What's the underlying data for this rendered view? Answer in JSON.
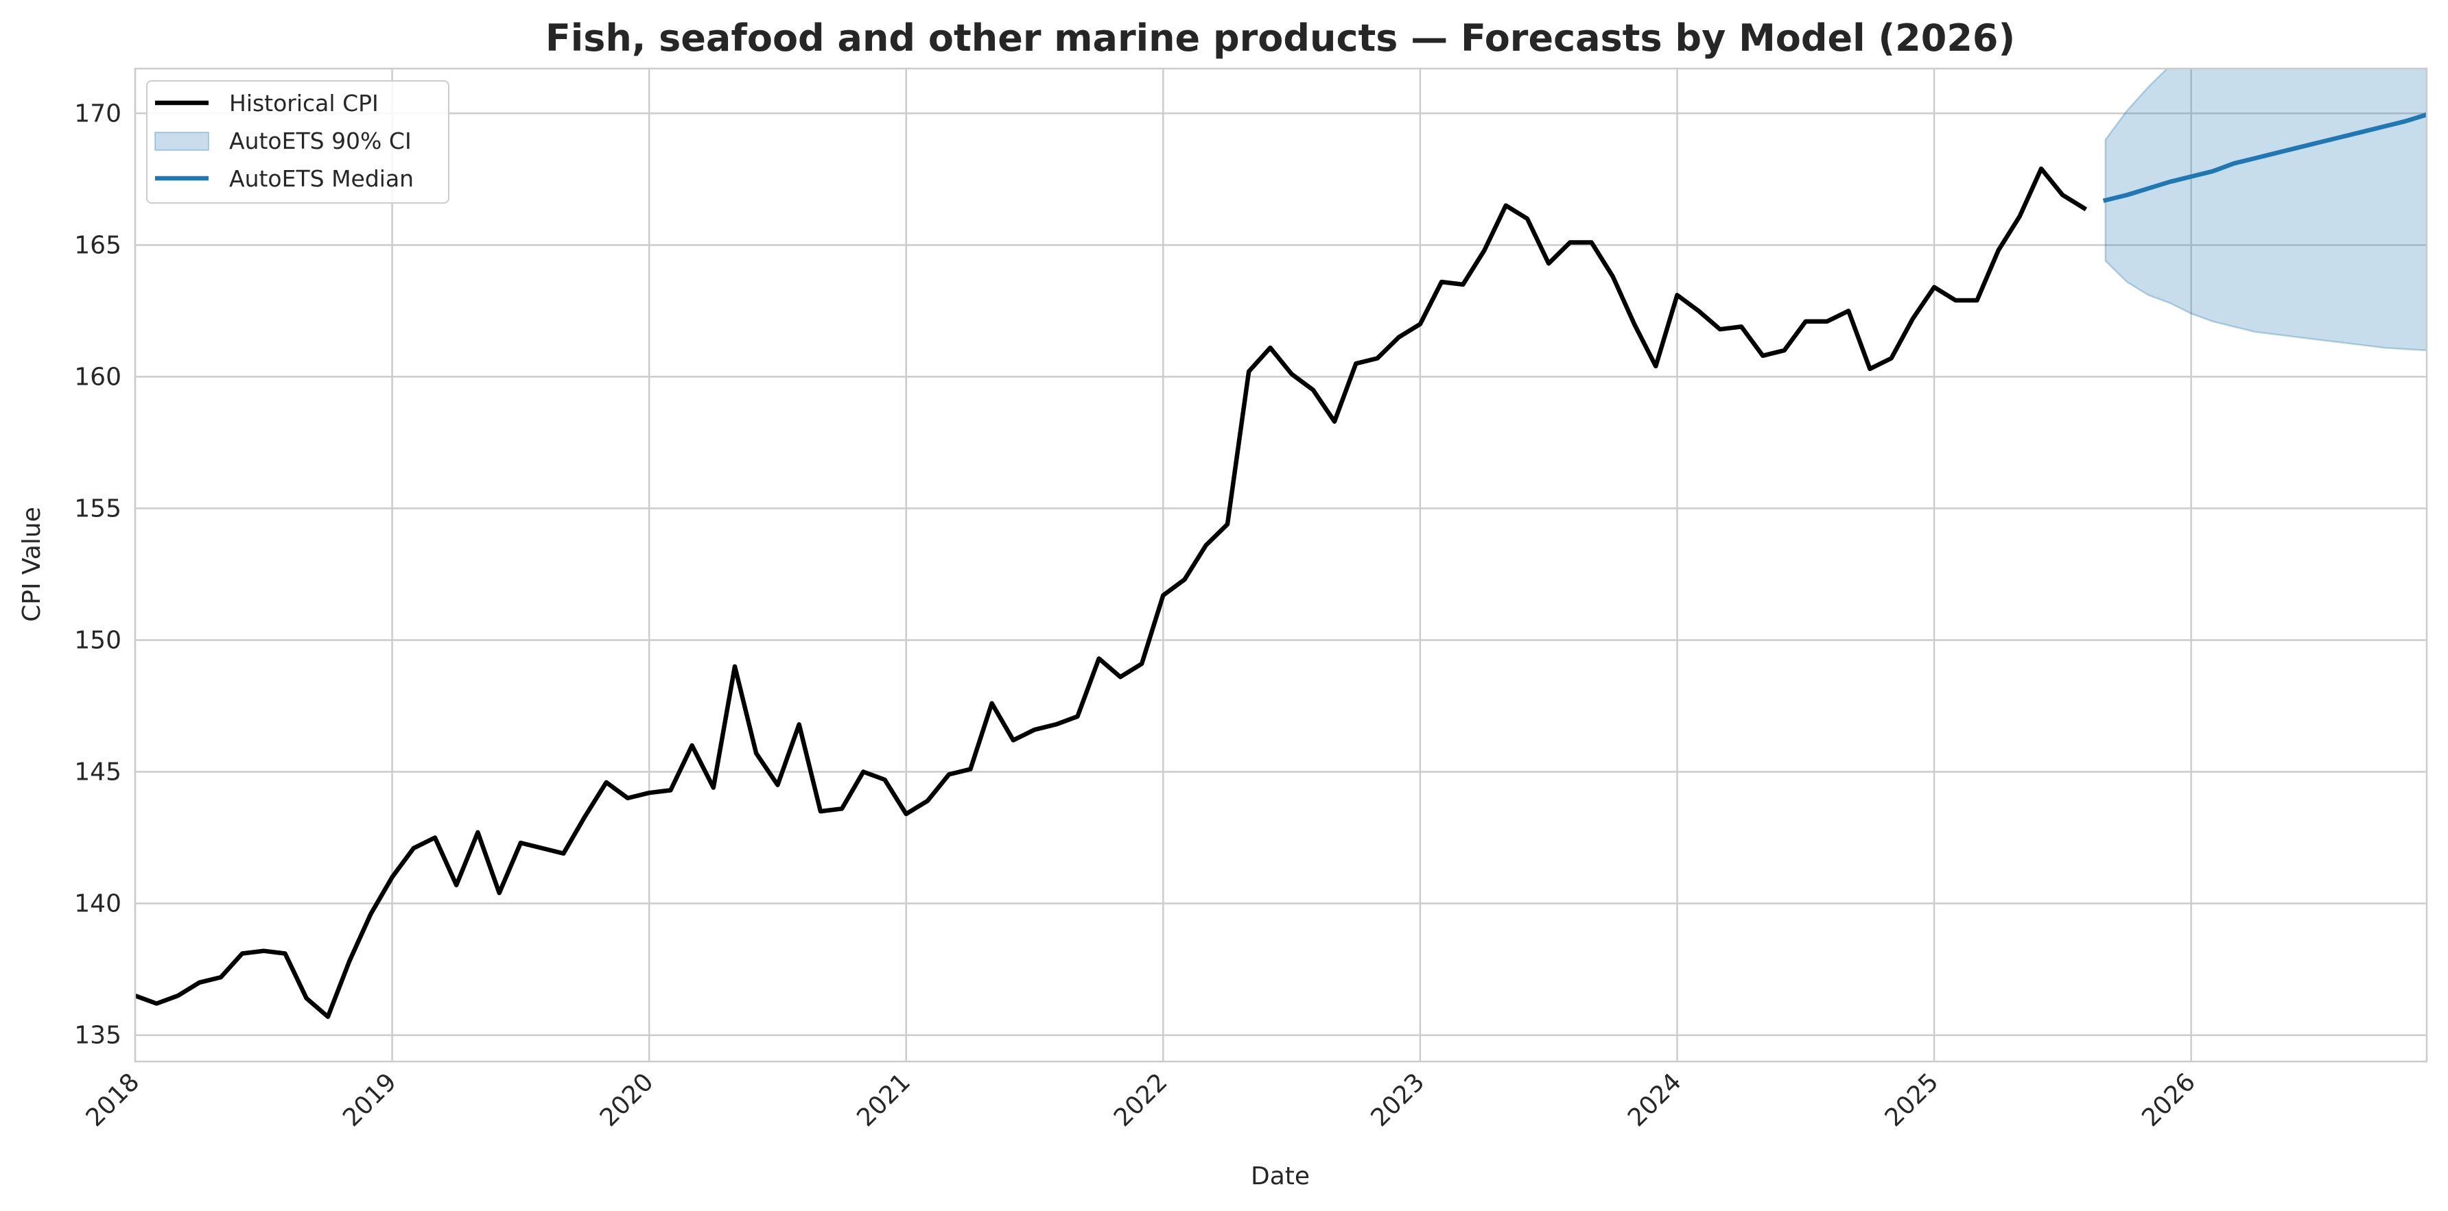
{
  "chart_data": {
    "type": "line",
    "title": "Fish, seafood and other marine products — Forecasts by Model (2026)",
    "xlabel": "Date",
    "ylabel": "CPI Value",
    "xlim": [
      "2018-01",
      "2026-12"
    ],
    "ylim": [
      134,
      171.7
    ],
    "grid": true,
    "legend_position": "top-left",
    "x_ticks": [
      "2018",
      "2019",
      "2020",
      "2021",
      "2022",
      "2023",
      "2024",
      "2025",
      "2026"
    ],
    "y_ticks": [
      135,
      140,
      145,
      150,
      155,
      160,
      165,
      170
    ],
    "series": [
      {
        "name": "Historical CPI",
        "kind": "line",
        "color": "#000000",
        "x": [
          "2018-01",
          "2018-02",
          "2018-03",
          "2018-04",
          "2018-05",
          "2018-06",
          "2018-07",
          "2018-08",
          "2018-09",
          "2018-10",
          "2018-11",
          "2018-12",
          "2019-01",
          "2019-02",
          "2019-03",
          "2019-04",
          "2019-05",
          "2019-06",
          "2019-07",
          "2019-08",
          "2019-09",
          "2019-10",
          "2019-11",
          "2019-12",
          "2020-01",
          "2020-02",
          "2020-03",
          "2020-04",
          "2020-05",
          "2020-06",
          "2020-07",
          "2020-08",
          "2020-09",
          "2020-10",
          "2020-11",
          "2020-12",
          "2021-01",
          "2021-02",
          "2021-03",
          "2021-04",
          "2021-05",
          "2021-06",
          "2021-07",
          "2021-08",
          "2021-09",
          "2021-10",
          "2021-11",
          "2021-12",
          "2022-01",
          "2022-02",
          "2022-03",
          "2022-04",
          "2022-05",
          "2022-06",
          "2022-07",
          "2022-08",
          "2022-09",
          "2022-10",
          "2022-11",
          "2022-12",
          "2023-01",
          "2023-02",
          "2023-03",
          "2023-04",
          "2023-05",
          "2023-06",
          "2023-07",
          "2023-08",
          "2023-09",
          "2023-10",
          "2023-11",
          "2023-12",
          "2024-01",
          "2024-02",
          "2024-03",
          "2024-04",
          "2024-05",
          "2024-06",
          "2024-07",
          "2024-08",
          "2024-09",
          "2024-10",
          "2024-11",
          "2024-12",
          "2025-01",
          "2025-02",
          "2025-03",
          "2025-04",
          "2025-05",
          "2025-06",
          "2025-07",
          "2025-08"
        ],
        "values": [
          136.5,
          136.2,
          136.5,
          137.0,
          137.2,
          138.1,
          138.2,
          138.1,
          136.4,
          135.7,
          137.8,
          139.6,
          141.0,
          142.1,
          142.5,
          140.7,
          142.7,
          140.4,
          142.3,
          142.1,
          141.9,
          143.3,
          144.6,
          144.0,
          144.2,
          144.3,
          146.0,
          144.4,
          149.0,
          145.7,
          144.5,
          146.8,
          143.5,
          143.6,
          145.0,
          144.7,
          143.4,
          143.9,
          144.9,
          145.1,
          147.6,
          146.2,
          146.6,
          146.8,
          147.1,
          149.3,
          148.6,
          149.1,
          151.7,
          152.3,
          153.6,
          154.4,
          160.2,
          161.1,
          160.1,
          159.5,
          158.3,
          160.5,
          160.7,
          161.5,
          162.0,
          163.6,
          163.5,
          164.8,
          166.5,
          166.0,
          164.3,
          165.1,
          165.1,
          163.8,
          162.0,
          160.4,
          163.1,
          162.5,
          161.8,
          161.9,
          160.8,
          161.0,
          162.1,
          162.1,
          162.5,
          160.3,
          160.7,
          162.2,
          163.4,
          162.9,
          162.9,
          164.8,
          166.1,
          167.9,
          166.9,
          166.4
        ]
      },
      {
        "name": "AutoETS 90% CI",
        "kind": "band",
        "color": "#1f77b4",
        "x": [
          "2025-09",
          "2025-10",
          "2025-11",
          "2025-12",
          "2026-01",
          "2026-02",
          "2026-03",
          "2026-04",
          "2026-05",
          "2026-06",
          "2026-07",
          "2026-08",
          "2026-09",
          "2026-10",
          "2026-11",
          "2026-12"
        ],
        "lower": [
          164.4,
          163.6,
          163.1,
          162.8,
          162.4,
          162.1,
          161.9,
          161.7,
          161.6,
          161.5,
          161.4,
          161.3,
          161.2,
          161.1,
          161.05,
          161.0
        ],
        "upper": [
          169.0,
          170.1,
          171.0,
          171.8,
          172.4,
          172.9,
          173.3,
          173.7,
          174.0,
          174.3,
          174.5,
          174.7,
          174.9,
          175.1,
          175.2,
          175.3
        ]
      },
      {
        "name": "AutoETS Median",
        "kind": "line",
        "color": "#1f77b4",
        "x": [
          "2025-09",
          "2025-10",
          "2025-11",
          "2025-12",
          "2026-01",
          "2026-02",
          "2026-03",
          "2026-04",
          "2026-05",
          "2026-06",
          "2026-07",
          "2026-08",
          "2026-09",
          "2026-10",
          "2026-11",
          "2026-12"
        ],
        "values": [
          166.7,
          166.9,
          167.15,
          167.4,
          167.6,
          167.8,
          168.1,
          168.3,
          168.5,
          168.7,
          168.9,
          169.1,
          169.3,
          169.5,
          169.7,
          169.95
        ]
      }
    ]
  }
}
